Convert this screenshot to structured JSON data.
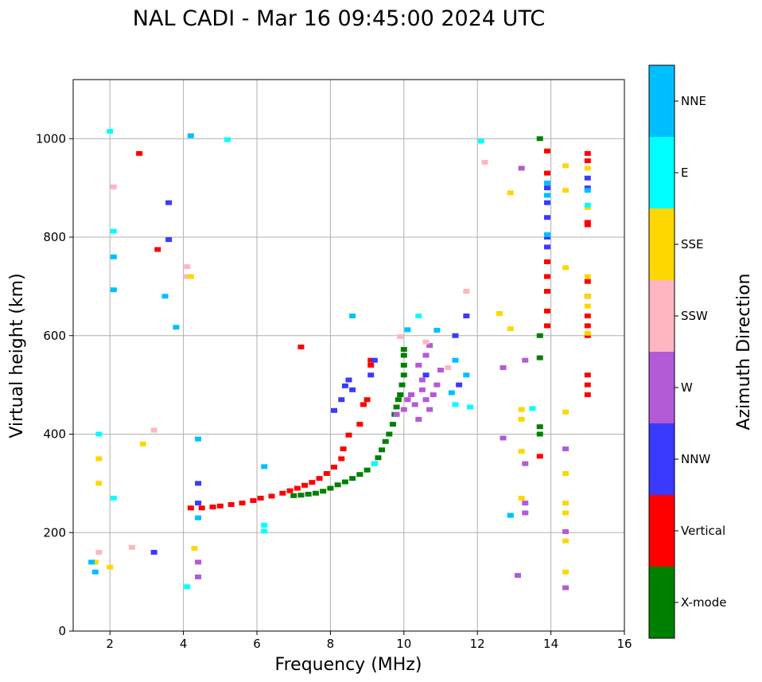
{
  "chart_data": {
    "type": "scatter",
    "title": "NAL CADI - Mar 16 09:45:00 2024 UTC",
    "xlabel": "Frequency (MHz)",
    "ylabel": "Virtual height (km)",
    "xlim": [
      1,
      16
    ],
    "ylim": [
      0,
      1120
    ],
    "xticks": [
      2,
      4,
      6,
      8,
      10,
      12,
      14,
      16
    ],
    "yticks": [
      0,
      200,
      400,
      600,
      800,
      1000
    ],
    "grid": true,
    "colorbar": {
      "label": "Azimuth Direction",
      "categories": [
        "X-mode",
        "Vertical",
        "NNW",
        "W",
        "SSW",
        "SSE",
        "E",
        "NNE"
      ],
      "colors": [
        "#008000",
        "#ff0000",
        "#3a3aff",
        "#b45ad6",
        "#ffb6c1",
        "#ffd700",
        "#00ffff",
        "#00bfff"
      ]
    },
    "series": [
      {
        "name": "X-mode",
        "points": [
          [
            7.0,
            275
          ],
          [
            7.2,
            276
          ],
          [
            7.4,
            278
          ],
          [
            7.6,
            280
          ],
          [
            7.8,
            284
          ],
          [
            8.0,
            290
          ],
          [
            8.2,
            297
          ],
          [
            8.4,
            303
          ],
          [
            8.6,
            310
          ],
          [
            8.8,
            318
          ],
          [
            9.0,
            327
          ],
          [
            9.2,
            340
          ],
          [
            9.3,
            352
          ],
          [
            9.4,
            368
          ],
          [
            9.5,
            385
          ],
          [
            9.6,
            400
          ],
          [
            9.7,
            420
          ],
          [
            9.75,
            440
          ],
          [
            9.8,
            455
          ],
          [
            9.85,
            470
          ],
          [
            9.9,
            480
          ],
          [
            9.95,
            500
          ],
          [
            10.0,
            520
          ],
          [
            10.0,
            540
          ],
          [
            10.0,
            560
          ],
          [
            10.0,
            572
          ],
          [
            13.7,
            1000
          ],
          [
            13.7,
            600
          ],
          [
            13.7,
            555
          ],
          [
            13.7,
            415
          ],
          [
            13.7,
            400
          ]
        ]
      },
      {
        "name": "Vertical",
        "points": [
          [
            4.2,
            250
          ],
          [
            4.5,
            250
          ],
          [
            4.8,
            252
          ],
          [
            5.0,
            254
          ],
          [
            5.3,
            257
          ],
          [
            5.6,
            260
          ],
          [
            5.9,
            265
          ],
          [
            6.1,
            270
          ],
          [
            6.4,
            274
          ],
          [
            6.7,
            280
          ],
          [
            6.9,
            285
          ],
          [
            7.1,
            290
          ],
          [
            7.3,
            296
          ],
          [
            7.5,
            302
          ],
          [
            7.7,
            310
          ],
          [
            7.9,
            320
          ],
          [
            8.1,
            333
          ],
          [
            8.3,
            350
          ],
          [
            8.35,
            370
          ],
          [
            8.5,
            398
          ],
          [
            8.8,
            420
          ],
          [
            8.9,
            460
          ],
          [
            9.0,
            470
          ],
          [
            9.1,
            540
          ],
          [
            9.1,
            550
          ],
          [
            7.2,
            577
          ],
          [
            13.9,
            620
          ],
          [
            13.9,
            650
          ],
          [
            13.9,
            690
          ],
          [
            13.9,
            720
          ],
          [
            13.9,
            750
          ],
          [
            13.9,
            930
          ],
          [
            13.9,
            975
          ],
          [
            13.7,
            355
          ],
          [
            15.0,
            480
          ],
          [
            15.0,
            500
          ],
          [
            15.0,
            520
          ],
          [
            15.0,
            600
          ],
          [
            15.0,
            620
          ],
          [
            15.0,
            640
          ],
          [
            15.0,
            680
          ],
          [
            15.0,
            710
          ],
          [
            15.0,
            825
          ],
          [
            15.0,
            830
          ],
          [
            15.0,
            955
          ],
          [
            15.0,
            970
          ],
          [
            2.8,
            970
          ],
          [
            3.3,
            775
          ]
        ]
      },
      {
        "name": "NNW",
        "points": [
          [
            4.4,
            260
          ],
          [
            4.4,
            300
          ],
          [
            8.1,
            448
          ],
          [
            8.3,
            470
          ],
          [
            8.4,
            498
          ],
          [
            8.5,
            510
          ],
          [
            8.6,
            490
          ],
          [
            9.1,
            520
          ],
          [
            9.2,
            550
          ],
          [
            10.6,
            520
          ],
          [
            11.5,
            500
          ],
          [
            11.4,
            600
          ],
          [
            11.7,
            640
          ],
          [
            13.9,
            780
          ],
          [
            13.9,
            800
          ],
          [
            13.9,
            840
          ],
          [
            13.9,
            900
          ],
          [
            13.9,
            870
          ],
          [
            15.0,
            900
          ],
          [
            15.0,
            920
          ],
          [
            3.6,
            870
          ],
          [
            3.6,
            795
          ],
          [
            3.2,
            160
          ]
        ]
      },
      {
        "name": "W",
        "points": [
          [
            9.8,
            440
          ],
          [
            10.0,
            450
          ],
          [
            10.1,
            470
          ],
          [
            10.2,
            480
          ],
          [
            10.3,
            460
          ],
          [
            10.4,
            430
          ],
          [
            10.5,
            490
          ],
          [
            10.6,
            470
          ],
          [
            10.7,
            450
          ],
          [
            10.8,
            480
          ],
          [
            10.9,
            500
          ],
          [
            10.6,
            560
          ],
          [
            10.7,
            580
          ],
          [
            10.4,
            540
          ],
          [
            10.5,
            510
          ],
          [
            11.0,
            530
          ],
          [
            13.3,
            240
          ],
          [
            13.3,
            260
          ],
          [
            13.3,
            340
          ],
          [
            13.3,
            550
          ],
          [
            13.1,
            113
          ],
          [
            12.7,
            392
          ],
          [
            12.7,
            535
          ],
          [
            13.2,
            940
          ],
          [
            14.4,
            370
          ],
          [
            14.4,
            202
          ],
          [
            14.4,
            88
          ],
          [
            4.4,
            140
          ],
          [
            4.4,
            110
          ]
        ]
      },
      {
        "name": "SSW",
        "points": [
          [
            1.7,
            160
          ],
          [
            2.6,
            170
          ],
          [
            2.1,
            902
          ],
          [
            4.1,
            740
          ],
          [
            4.1,
            720
          ],
          [
            3.2,
            408
          ],
          [
            11.7,
            690
          ],
          [
            12.2,
            952
          ],
          [
            10.6,
            587
          ],
          [
            11.2,
            535
          ],
          [
            9.9,
            598
          ]
        ]
      },
      {
        "name": "SSE",
        "points": [
          [
            1.7,
            350
          ],
          [
            1.7,
            300
          ],
          [
            1.6,
            140
          ],
          [
            2.0,
            130
          ],
          [
            12.6,
            645
          ],
          [
            12.9,
            614
          ],
          [
            12.9,
            890
          ],
          [
            13.2,
            430
          ],
          [
            13.2,
            450
          ],
          [
            13.2,
            270
          ],
          [
            13.2,
            365
          ],
          [
            14.4,
            945
          ],
          [
            14.4,
            895
          ],
          [
            14.4,
            738
          ],
          [
            14.4,
            445
          ],
          [
            14.4,
            320
          ],
          [
            14.4,
            260
          ],
          [
            14.4,
            240
          ],
          [
            14.4,
            183
          ],
          [
            14.4,
            120
          ],
          [
            15.0,
            680
          ],
          [
            15.0,
            720
          ],
          [
            15.0,
            660
          ],
          [
            15.0,
            605
          ],
          [
            15.0,
            940
          ],
          [
            15.0,
            860
          ],
          [
            4.2,
            720
          ],
          [
            4.3,
            168
          ],
          [
            2.9,
            380
          ]
        ]
      },
      {
        "name": "E",
        "points": [
          [
            1.7,
            400
          ],
          [
            2.0,
            1015
          ],
          [
            2.1,
            812
          ],
          [
            2.1,
            270
          ],
          [
            4.1,
            90
          ],
          [
            6.2,
            215
          ],
          [
            6.2,
            203
          ],
          [
            9.2,
            340
          ],
          [
            10.4,
            640
          ],
          [
            11.4,
            460
          ],
          [
            11.8,
            455
          ],
          [
            12.9,
            235
          ],
          [
            13.5,
            452
          ],
          [
            15.0,
            865
          ],
          [
            5.2,
            998
          ],
          [
            12.1,
            995
          ]
        ]
      },
      {
        "name": "NNE",
        "points": [
          [
            1.5,
            140
          ],
          [
            1.6,
            120
          ],
          [
            2.1,
            760
          ],
          [
            2.1,
            693
          ],
          [
            3.5,
            680
          ],
          [
            3.8,
            617
          ],
          [
            4.4,
            230
          ],
          [
            4.4,
            390
          ],
          [
            6.2,
            334
          ],
          [
            8.6,
            640
          ],
          [
            10.1,
            612
          ],
          [
            10.9,
            611
          ],
          [
            11.4,
            550
          ],
          [
            11.7,
            520
          ],
          [
            11.3,
            484
          ],
          [
            12.9,
            235
          ],
          [
            13.9,
            805
          ],
          [
            13.9,
            885
          ],
          [
            13.9,
            910
          ],
          [
            15.0,
            895
          ],
          [
            4.2,
            1006
          ]
        ]
      }
    ]
  }
}
